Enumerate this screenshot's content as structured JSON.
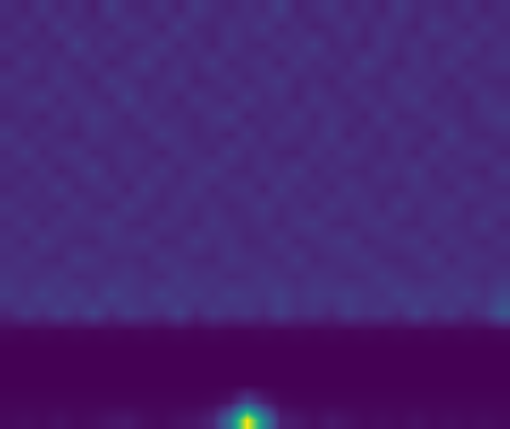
{
  "chart_data": {
    "type": "heatmap",
    "color": "Viridis",
    "zlim": [
      0,
      1
    ],
    "tick_labels": false,
    "z": [
      [
        0.12,
        0.09,
        0.15,
        0.1,
        0.13,
        0.08,
        0.17,
        0.11,
        0.1,
        0.14,
        0.09,
        0.16,
        0.12,
        0.1,
        0.13,
        0.11,
        0.18,
        0.09,
        0.12,
        0.15,
        0.1,
        0.13,
        0.09,
        0.16,
        0.11,
        0.12,
        0.1,
        0.14,
        0.09,
        0.12
      ],
      [
        0.1,
        0.14,
        0.09,
        0.16,
        0.11,
        0.12,
        0.1,
        0.15,
        0.13,
        0.09,
        0.17,
        0.11,
        0.1,
        0.14,
        0.12,
        0.16,
        0.1,
        0.13,
        0.09,
        0.11,
        0.15,
        0.1,
        0.14,
        0.12,
        0.09,
        0.16,
        0.13,
        0.1,
        0.15,
        0.11
      ],
      [
        0.13,
        0.1,
        0.12,
        0.09,
        0.18,
        0.11,
        0.14,
        0.1,
        0.12,
        0.16,
        0.1,
        0.13,
        0.09,
        0.15,
        0.11,
        0.1,
        0.14,
        0.12,
        0.17,
        0.1,
        0.12,
        0.09,
        0.15,
        0.11,
        0.14,
        0.1,
        0.12,
        0.16,
        0.1,
        0.13
      ],
      [
        0.09,
        0.15,
        0.11,
        0.13,
        0.1,
        0.14,
        0.09,
        0.12,
        0.17,
        0.1,
        0.13,
        0.11,
        0.16,
        0.1,
        0.12,
        0.14,
        0.09,
        0.15,
        0.11,
        0.13,
        0.1,
        0.17,
        0.12,
        0.09,
        0.14,
        0.11,
        0.15,
        0.1,
        0.12,
        0.14
      ],
      [
        0.14,
        0.11,
        0.1,
        0.15,
        0.12,
        0.09,
        0.16,
        0.13,
        0.1,
        0.12,
        0.15,
        0.09,
        0.11,
        0.14,
        0.1,
        0.13,
        0.16,
        0.1,
        0.12,
        0.09,
        0.14,
        0.11,
        0.1,
        0.15,
        0.12,
        0.13,
        0.09,
        0.14,
        0.11,
        0.1
      ],
      [
        0.11,
        0.13,
        0.16,
        0.1,
        0.14,
        0.12,
        0.1,
        0.18,
        0.11,
        0.13,
        0.09,
        0.15,
        0.12,
        0.1,
        0.16,
        0.11,
        0.13,
        0.09,
        0.15,
        0.12,
        0.1,
        0.14,
        0.11,
        0.13,
        0.16,
        0.1,
        0.12,
        0.09,
        0.15,
        0.12
      ],
      [
        0.1,
        0.12,
        0.09,
        0.14,
        0.11,
        0.16,
        0.13,
        0.1,
        0.15,
        0.11,
        0.12,
        0.1,
        0.14,
        0.17,
        0.09,
        0.12,
        0.11,
        0.15,
        0.1,
        0.14,
        0.12,
        0.09,
        0.16,
        0.1,
        0.11,
        0.14,
        0.12,
        0.1,
        0.13,
        0.16
      ],
      [
        0.15,
        0.1,
        0.13,
        0.11,
        0.09,
        0.14,
        0.12,
        0.11,
        0.1,
        0.16,
        0.13,
        0.1,
        0.12,
        0.09,
        0.15,
        0.1,
        0.14,
        0.12,
        0.11,
        0.16,
        0.09,
        0.13,
        0.1,
        0.14,
        0.12,
        0.09,
        0.17,
        0.11,
        0.1,
        0.12
      ],
      [
        0.11,
        0.16,
        0.1,
        0.13,
        0.15,
        0.1,
        0.11,
        0.14,
        0.12,
        0.09,
        0.14,
        0.12,
        0.1,
        0.16,
        0.11,
        0.13,
        0.1,
        0.09,
        0.14,
        0.11,
        0.15,
        0.12,
        0.1,
        0.13,
        0.09,
        0.15,
        0.11,
        0.13,
        0.14,
        0.1
      ],
      [
        0.12,
        0.1,
        0.14,
        0.09,
        0.12,
        0.17,
        0.1,
        0.13,
        0.11,
        0.15,
        0.1,
        0.13,
        0.16,
        0.11,
        0.1,
        0.14,
        0.12,
        0.16,
        0.1,
        0.13,
        0.11,
        0.1,
        0.14,
        0.12,
        0.16,
        0.1,
        0.13,
        0.11,
        0.09,
        0.15
      ],
      [
        0.1,
        0.13,
        0.11,
        0.16,
        0.1,
        0.12,
        0.14,
        0.09,
        0.16,
        0.11,
        0.12,
        0.15,
        0.1,
        0.13,
        0.14,
        0.09,
        0.16,
        0.11,
        0.13,
        0.1,
        0.15,
        0.12,
        0.11,
        0.1,
        0.14,
        0.12,
        0.1,
        0.15,
        0.12,
        0.11
      ],
      [
        0.14,
        0.11,
        0.12,
        0.1,
        0.15,
        0.11,
        0.1,
        0.16,
        0.12,
        0.1,
        0.14,
        0.11,
        0.13,
        0.1,
        0.12,
        0.16,
        0.11,
        0.13,
        0.1,
        0.15,
        0.12,
        0.14,
        0.1,
        0.16,
        0.11,
        0.13,
        0.15,
        0.1,
        0.12,
        0.14
      ],
      [
        0.11,
        0.15,
        0.1,
        0.14,
        0.12,
        0.13,
        0.16,
        0.11,
        0.1,
        0.14,
        0.12,
        0.1,
        0.15,
        0.12,
        0.11,
        0.13,
        0.1,
        0.14,
        0.16,
        0.11,
        0.1,
        0.13,
        0.15,
        0.11,
        0.1,
        0.14,
        0.12,
        0.11,
        0.16,
        0.1
      ],
      [
        0.13,
        0.1,
        0.16,
        0.12,
        0.11,
        0.1,
        0.14,
        0.13,
        0.15,
        0.1,
        0.11,
        0.16,
        0.12,
        0.14,
        0.1,
        0.11,
        0.15,
        0.1,
        0.12,
        0.14,
        0.16,
        0.1,
        0.12,
        0.13,
        0.15,
        0.1,
        0.14,
        0.12,
        0.1,
        0.13
      ],
      [
        0.12,
        0.14,
        0.11,
        0.1,
        0.16,
        0.14,
        0.11,
        0.12,
        0.1,
        0.15,
        0.13,
        0.11,
        0.1,
        0.15,
        0.13,
        0.12,
        0.11,
        0.16,
        0.1,
        0.12,
        0.13,
        0.15,
        0.11,
        0.1,
        0.12,
        0.16,
        0.1,
        0.14,
        0.13,
        0.11
      ],
      [
        0.14,
        0.12,
        0.13,
        0.15,
        0.11,
        0.12,
        0.13,
        0.15,
        0.12,
        0.11,
        0.16,
        0.13,
        0.14,
        0.11,
        0.12,
        0.15,
        0.13,
        0.11,
        0.14,
        0.13,
        0.11,
        0.12,
        0.16,
        0.13,
        0.11,
        0.12,
        0.15,
        0.13,
        0.11,
        0.14
      ],
      [
        0.16,
        0.13,
        0.18,
        0.14,
        0.17,
        0.12,
        0.19,
        0.15,
        0.13,
        0.18,
        0.14,
        0.16,
        0.13,
        0.17,
        0.15,
        0.14,
        0.18,
        0.13,
        0.16,
        0.15,
        0.17,
        0.14,
        0.13,
        0.18,
        0.15,
        0.16,
        0.14,
        0.17,
        0.13,
        0.19
      ],
      [
        0.1,
        0.16,
        0.12,
        0.18,
        0.13,
        0.2,
        0.11,
        0.17,
        0.14,
        0.12,
        0.19,
        0.1,
        0.16,
        0.13,
        0.15,
        0.11,
        0.18,
        0.12,
        0.14,
        0.1,
        0.17,
        0.13,
        0.15,
        0.11,
        0.19,
        0.12,
        0.16,
        0.1,
        0.14,
        0.26
      ],
      [
        0.02,
        0.01,
        0.02,
        0.01,
        0.02,
        0.01,
        0.02,
        0.01,
        0.02,
        0.01,
        0.02,
        0.01,
        0.02,
        0.01,
        0.01,
        0.02,
        0.01,
        0.02,
        0.01,
        0.02,
        0.01,
        0.02,
        0.01,
        0.02,
        0.01,
        0.02,
        0.01,
        0.02,
        0.01,
        0.02
      ],
      [
        0.0,
        0.0,
        0.0,
        0.0,
        0.0,
        0.0,
        0.0,
        0.0,
        0.0,
        0.0,
        0.0,
        0.0,
        0.0,
        0.0,
        0.0,
        0.0,
        0.0,
        0.0,
        0.0,
        0.0,
        0.0,
        0.0,
        0.0,
        0.0,
        0.0,
        0.0,
        0.0,
        0.0,
        0.0,
        0.0
      ],
      [
        0.0,
        0.0,
        0.0,
        0.0,
        0.0,
        0.0,
        0.0,
        0.0,
        0.0,
        0.0,
        0.0,
        0.0,
        0.0,
        0.0,
        0.0,
        0.0,
        0.0,
        0.0,
        0.0,
        0.0,
        0.0,
        0.0,
        0.0,
        0.0,
        0.0,
        0.0,
        0.0,
        0.0,
        0.0,
        0.0
      ],
      [
        0.0,
        0.0,
        0.0,
        0.0,
        0.0,
        0.0,
        0.0,
        0.0,
        0.0,
        0.0,
        0.0,
        0.0,
        0.0,
        0.0,
        0.0,
        0.0,
        0.0,
        0.0,
        0.0,
        0.0,
        0.0,
        0.0,
        0.0,
        0.0,
        0.0,
        0.0,
        0.0,
        0.0,
        0.0,
        0.0
      ],
      [
        0.01,
        0.01,
        0.01,
        0.01,
        0.01,
        0.01,
        0.01,
        0.01,
        0.01,
        0.01,
        0.01,
        0.01,
        0.02,
        0.05,
        0.2,
        0.08,
        0.02,
        0.01,
        0.01,
        0.01,
        0.01,
        0.01,
        0.01,
        0.01,
        0.01,
        0.01,
        0.01,
        0.01,
        0.01,
        0.01
      ],
      [
        0.02,
        0.03,
        0.02,
        0.04,
        0.02,
        0.03,
        0.05,
        0.06,
        0.03,
        0.02,
        0.04,
        0.05,
        0.1,
        0.35,
        1.0,
        0.45,
        0.08,
        0.06,
        0.03,
        0.06,
        0.04,
        0.02,
        0.03,
        0.02,
        0.04,
        0.02,
        0.03,
        0.02,
        0.03,
        0.02
      ]
    ]
  }
}
